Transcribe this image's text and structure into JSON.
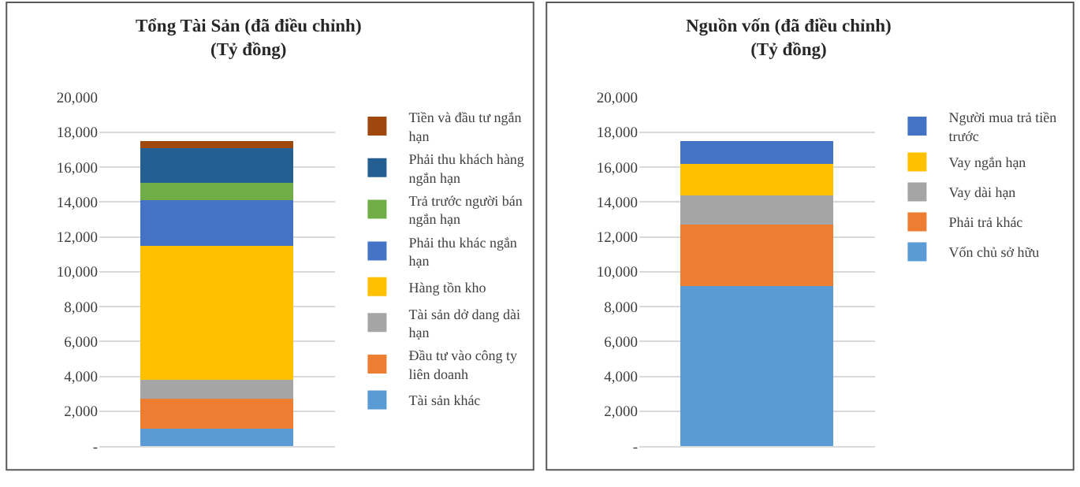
{
  "chart_data": [
    {
      "type": "bar",
      "stacked": true,
      "title": "Tổng Tài Sản (đã điều chỉnh)\n(Tỷ đồng)",
      "categories": [
        null
      ],
      "ylim": [
        0,
        20000
      ],
      "yticks": [
        {
          "value": 0,
          "label": "-"
        },
        {
          "value": 2000,
          "label": "2,000"
        },
        {
          "value": 4000,
          "label": "4,000"
        },
        {
          "value": 6000,
          "label": "6,000"
        },
        {
          "value": 8000,
          "label": "8,000"
        },
        {
          "value": 10000,
          "label": "10,000"
        },
        {
          "value": 12000,
          "label": "12,000"
        },
        {
          "value": 14000,
          "label": "14,000"
        },
        {
          "value": 16000,
          "label": "16,000"
        },
        {
          "value": 18000,
          "label": "18,000"
        },
        {
          "value": 20000,
          "label": "20,000"
        }
      ],
      "grid": "y",
      "legend": "right",
      "series": [
        {
          "name": "Tài sản khác",
          "color": "#5b9bd5",
          "values": [
            1000
          ]
        },
        {
          "name": "Đầu tư vào công ty liên doanh",
          "color": "#ed7d31",
          "values": [
            1700
          ]
        },
        {
          "name": "Tài sản dở dang dài hạn",
          "color": "#a5a5a5",
          "values": [
            1100
          ]
        },
        {
          "name": "Hàng tồn kho",
          "color": "#ffc000",
          "values": [
            7700
          ]
        },
        {
          "name": "Phải thu khác ngắn hạn",
          "color": "#4472c4",
          "values": [
            2600
          ]
        },
        {
          "name": "Trả trước người bán ngắn hạn",
          "color": "#70ad47",
          "values": [
            1000
          ]
        },
        {
          "name": "Phải thu khách hàng ngắn hạn",
          "color": "#255e91",
          "values": [
            2000
          ]
        },
        {
          "name": "Tiền và đầu tư ngắn hạn",
          "color": "#9e480e",
          "values": [
            400
          ]
        }
      ]
    },
    {
      "type": "bar",
      "stacked": true,
      "title": "Nguồn vốn (đã điều chỉnh)\n(Tỷ đồng)",
      "categories": [
        null
      ],
      "ylim": [
        0,
        20000
      ],
      "yticks": [
        {
          "value": 0,
          "label": "-"
        },
        {
          "value": 2000,
          "label": "2,000"
        },
        {
          "value": 4000,
          "label": "4,000"
        },
        {
          "value": 6000,
          "label": "6,000"
        },
        {
          "value": 8000,
          "label": "8,000"
        },
        {
          "value": 10000,
          "label": "10,000"
        },
        {
          "value": 12000,
          "label": "12,000"
        },
        {
          "value": 14000,
          "label": "14,000"
        },
        {
          "value": 16000,
          "label": "16,000"
        },
        {
          "value": 18000,
          "label": "18,000"
        },
        {
          "value": 20000,
          "label": "20,000"
        }
      ],
      "grid": "y",
      "legend": "right",
      "series": [
        {
          "name": "Vốn chủ sở hữu",
          "color": "#5b9bd5",
          "values": [
            9200
          ]
        },
        {
          "name": "Phải trả khác",
          "color": "#ed7d31",
          "values": [
            3500
          ]
        },
        {
          "name": "Vay dài hạn",
          "color": "#a5a5a5",
          "values": [
            1700
          ]
        },
        {
          "name": "Vay ngắn hạn",
          "color": "#ffc000",
          "values": [
            1800
          ]
        },
        {
          "name": "Người mua trả tiền trước",
          "color": "#4472c4",
          "values": [
            1300
          ]
        }
      ]
    }
  ]
}
